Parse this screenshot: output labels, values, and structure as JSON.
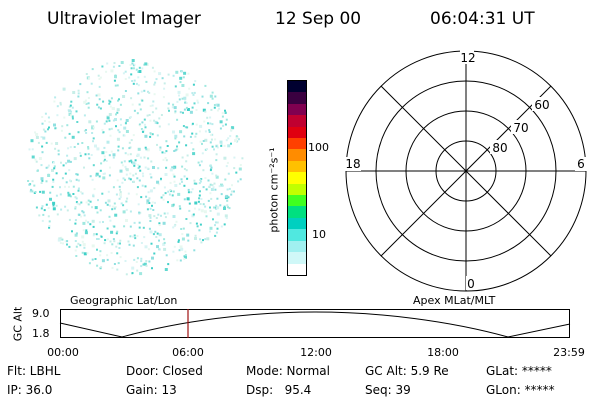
{
  "header": {
    "title": "Ultraviolet Imager",
    "date": "12 Sep 00",
    "time": "06:04:31 UT"
  },
  "colorbar": {
    "unit_label": "photon cm⁻²s⁻¹",
    "ticks": [
      "100",
      "10"
    ],
    "colors": [
      "#000030",
      "#3a0040",
      "#800050",
      "#c00030",
      "#e00010",
      "#ff4000",
      "#ff8c00",
      "#ffc000",
      "#ffff00",
      "#c0ff00",
      "#40ff20",
      "#00e080",
      "#00d0c0",
      "#50e8e0",
      "#a0f0f0",
      "#d0f8f8",
      "#ffffff"
    ]
  },
  "polar": {
    "mlt_labels": {
      "top": "12",
      "left": "18",
      "right": "6",
      "bottom": "0"
    },
    "lat_labels": [
      "60",
      "70",
      "80"
    ]
  },
  "timeline": {
    "left_label": "Geographic Lat/Lon",
    "right_label": "Apex MLat/MLT",
    "ylabel": "GC Alt",
    "y_max": "9.0",
    "y_min": "1.8",
    "x_ticks": [
      "00:00",
      "06:00",
      "12:00",
      "18:00",
      "23:59"
    ],
    "marker_color": "#a01010"
  },
  "info": {
    "filter": "Flt: LBHL",
    "ip": "IP: 36.0",
    "door": "Door: Closed",
    "gain": "Gain: 13",
    "mode": "Mode: Normal",
    "dsp": "Dsp:   95.4",
    "gc_alt": "GC Alt: 5.9 Re",
    "seq": "Seq: 39",
    "glat": "GLat: *****",
    "glon": "GLon: *****"
  }
}
